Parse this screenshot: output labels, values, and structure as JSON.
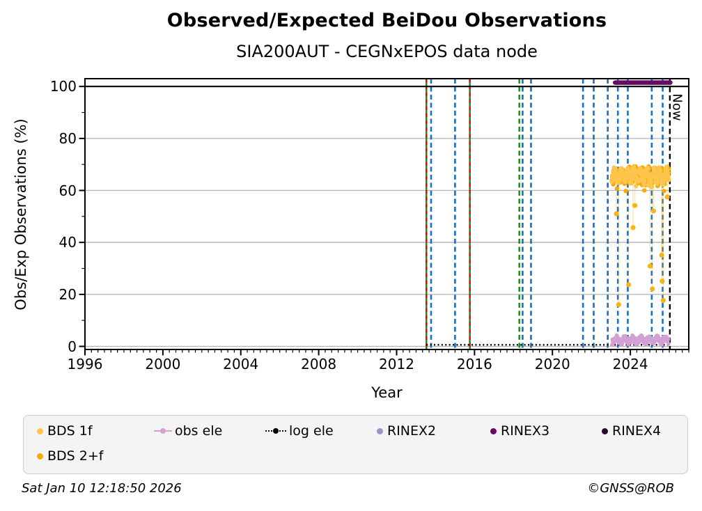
{
  "ui": {
    "title": "Observed/Expected BeiDou Observations",
    "subtitle": "SIA200AUT - CEGNxEPOS data node",
    "xlabel": "Year",
    "ylabel": "Obs/Exp Observations (%)",
    "now_label": "Now",
    "timestamp": "Sat Jan 10 12:18:50 2026",
    "copyright": "©GNSS@ROB"
  },
  "colors": {
    "bds_1f": "#fdc54c",
    "bds_2f": "#fcaa02",
    "band_amber": "#fcb414",
    "obs_ele": "#d2a0d2",
    "log_ele": "#000000",
    "rinex2": "#9b93cc",
    "rinex3": "#650a62",
    "rinex4": "#2a0a2e",
    "blue_event": "#1b6ec2",
    "green_event": "#0a8f0a",
    "red_event": "#ee0000",
    "grid": "#b2b2b2",
    "frame": "#000000"
  },
  "legend": {
    "items": [
      {
        "label": "BDS 1f",
        "marker": "dot",
        "color_key": "bds_1f"
      },
      {
        "label": "obs ele",
        "marker": "line-dot",
        "color_key": "obs_ele"
      },
      {
        "label": "log ele",
        "marker": "dotted-line-dot",
        "color_key": "log_ele"
      },
      {
        "label": "RINEX2",
        "marker": "dot",
        "color_key": "rinex2"
      },
      {
        "label": "RINEX3",
        "marker": "dot",
        "color_key": "rinex3"
      },
      {
        "label": "RINEX4",
        "marker": "dot",
        "color_key": "rinex4"
      },
      {
        "label": "BDS 2+f",
        "marker": "dot",
        "color_key": "bds_2f"
      }
    ]
  },
  "chart_data": {
    "type": "scatter",
    "title": "Observed/Expected BeiDou Observations",
    "subtitle": "SIA200AUT - CEGNxEPOS data node",
    "xlabel": "Year",
    "ylabel": "Obs/Exp Observations (%)",
    "xlim": [
      1996.0,
      2027.0
    ],
    "ylim": [
      -1.2,
      103.0
    ],
    "xticks_major": [
      1996,
      2000,
      2004,
      2008,
      2012,
      2016,
      2020,
      2024
    ],
    "xtick_minor_step_years": 0.3333,
    "yticks_major": [
      0,
      20,
      40,
      60,
      80,
      100
    ],
    "ytick_minor_step": 10,
    "grid": "horizontal-gray",
    "legend_position": "bottom",
    "reference_lines": {
      "expected_100": {
        "y": 100,
        "style": "solid",
        "color": "#000000",
        "x_start": 1996.0,
        "x_end": 2027.0
      },
      "now": {
        "x": 2026.03,
        "style": "dashed",
        "color": "#000000",
        "label": "Now"
      }
    },
    "event_lines": {
      "green_solid_red_dashed": [
        2013.53,
        2015.76
      ],
      "green_dashed": [
        2018.3
      ],
      "blue_dashed": [
        2013.77,
        2015.0,
        2018.47,
        2018.9,
        2021.57,
        2022.12,
        2022.84,
        2023.36,
        2023.87,
        2025.1,
        2025.66
      ]
    },
    "series": [
      {
        "name": "BDS 1f",
        "type": "scatter-band",
        "color_key": "bds_1f",
        "band": {
          "x_start": 2023.05,
          "x_end": 2025.97,
          "y_center": 65.8,
          "y_spread": 3.2,
          "y_min": 59.8,
          "y_max": 70.2,
          "n_points": 270
        }
      },
      {
        "name": "BDS 2+f",
        "type": "scatter-band",
        "color_key": "bds_2f",
        "band": {
          "x_start": 2023.05,
          "x_end": 2025.97,
          "y_center": 65.6,
          "y_spread": 3.2,
          "y_min": 59.8,
          "y_max": 70.2,
          "n_points": 270
        },
        "outliers": [
          [
            2023.28,
            51.0
          ],
          [
            2023.4,
            16.1
          ],
          [
            2023.91,
            23.7
          ],
          [
            2024.14,
            45.7
          ],
          [
            2024.23,
            54.2
          ],
          [
            2025.01,
            30.9
          ],
          [
            2025.13,
            22.1
          ],
          [
            2025.19,
            52.1
          ],
          [
            2025.61,
            35.1
          ],
          [
            2025.63,
            25.1
          ],
          [
            2025.69,
            17.7
          ],
          [
            2025.9,
            57.5
          ]
        ]
      },
      {
        "name": "obs ele",
        "type": "line-scatter-band",
        "color_key": "obs_ele",
        "band": {
          "x_start": 2023.05,
          "x_end": 2025.97,
          "y_center": 2.4,
          "y_spread": 1.5,
          "y_min": 0.6,
          "y_max": 4.4,
          "n_points": 230
        }
      },
      {
        "name": "log ele",
        "type": "dotted-line",
        "color_key": "log_ele",
        "y": 0.6,
        "x_start": 2013.53,
        "x_end": 2026.03
      },
      {
        "name": "RINEX2",
        "type": "scatter",
        "color_key": "rinex2",
        "points": []
      },
      {
        "name": "RINEX3",
        "type": "thick-line",
        "color_key": "rinex3",
        "y": 101.5,
        "x_start": 2023.22,
        "x_end": 2026.05
      },
      {
        "name": "RINEX4",
        "type": "scatter",
        "color_key": "rinex4",
        "points": []
      }
    ]
  }
}
